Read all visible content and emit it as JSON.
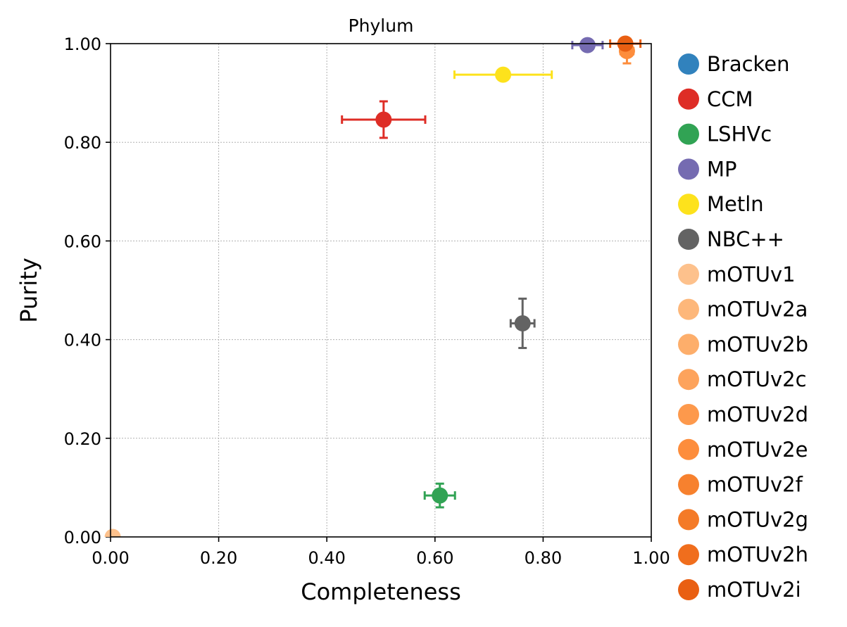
{
  "chart_data": {
    "type": "scatter",
    "title": "Phylum",
    "xlabel": "Completeness",
    "ylabel": "Purity",
    "xlim": [
      0.0,
      1.0
    ],
    "ylim": [
      0.0,
      1.0
    ],
    "xticks": [
      "0.00",
      "0.20",
      "0.40",
      "0.60",
      "0.80",
      "1.00"
    ],
    "yticks": [
      "0.00",
      "0.20",
      "0.40",
      "0.60",
      "0.80",
      "1.00"
    ],
    "xtick_values": [
      0.0,
      0.2,
      0.4,
      0.6,
      0.8,
      1.0
    ],
    "ytick_values": [
      0.0,
      0.2,
      0.4,
      0.6,
      0.8,
      1.0
    ],
    "grid": true,
    "legend_position": "right-outside",
    "series": [
      {
        "name": "Bracken",
        "color": "#3182bd",
        "points": []
      },
      {
        "name": "CCM",
        "color": "#de2d26",
        "points": [
          {
            "x": 0.505,
            "y": 0.846,
            "xerr": 0.077,
            "yerr": 0.037
          }
        ]
      },
      {
        "name": "LSHVc",
        "color": "#31a354",
        "points": [
          {
            "x": 0.609,
            "y": 0.084,
            "xerr": 0.028,
            "yerr": 0.024
          }
        ]
      },
      {
        "name": "MP",
        "color": "#756bb1",
        "points": [
          {
            "x": 0.882,
            "y": 0.997,
            "xerr": 0.028,
            "yerr": 0.006
          }
        ]
      },
      {
        "name": "Metln",
        "color": "#fde21c",
        "points": [
          {
            "x": 0.726,
            "y": 0.937,
            "xerr": 0.09,
            "yerr": 0.0
          }
        ]
      },
      {
        "name": "NBC++",
        "color": "#636363",
        "points": [
          {
            "x": 0.762,
            "y": 0.433,
            "xerr": 0.022,
            "yerr": 0.05
          }
        ]
      },
      {
        "name": "mOTUv1",
        "color": "#fdc18c",
        "points": [
          {
            "x": 0.004,
            "y": 0.0,
            "xerr": 0.0,
            "yerr": 0.0
          }
        ]
      },
      {
        "name": "mOTUv2a",
        "color": "#fdb77a",
        "points": []
      },
      {
        "name": "mOTUv2b",
        "color": "#fdae6b",
        "points": []
      },
      {
        "name": "mOTUv2c",
        "color": "#fda35c",
        "points": []
      },
      {
        "name": "mOTUv2d",
        "color": "#fd994c",
        "points": []
      },
      {
        "name": "mOTUv2e",
        "color": "#fd8d3c",
        "points": [
          {
            "x": 0.955,
            "y": 0.985,
            "xerr": 0.012,
            "yerr": 0.025
          }
        ]
      },
      {
        "name": "mOTUv2f",
        "color": "#f7812e",
        "points": []
      },
      {
        "name": "mOTUv2g",
        "color": "#f47a27",
        "points": []
      },
      {
        "name": "mOTUv2h",
        "color": "#f06e1d",
        "points": []
      },
      {
        "name": "mOTUv2i",
        "color": "#e95f12",
        "points": [
          {
            "x": 0.952,
            "y": 1.0,
            "xerr": 0.028,
            "yerr": 0.0
          }
        ]
      }
    ]
  }
}
